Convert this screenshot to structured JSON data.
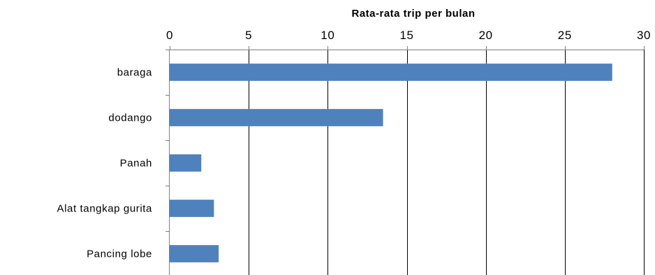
{
  "chart_data": {
    "type": "bar",
    "orientation": "horizontal",
    "title": "Rata-rata trip per bulan",
    "categories": [
      "baraga",
      "dodango",
      "Panah",
      "Alat tangkap gurita",
      "Pancing lobe"
    ],
    "values": [
      28,
      13.5,
      2,
      2.8,
      3.1
    ],
    "xlim": [
      0,
      30
    ],
    "x_ticks": [
      0,
      5,
      10,
      15,
      20,
      25,
      30
    ],
    "x_axis_position": "top",
    "grid": true,
    "legend": "none",
    "bar_color": "#4f81bd"
  }
}
